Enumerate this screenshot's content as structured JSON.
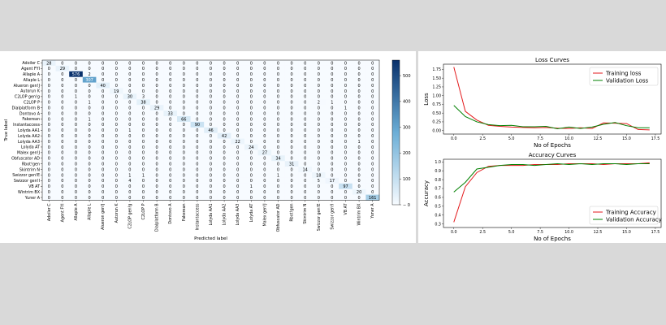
{
  "colors": {
    "page_bg": "#d9d9d9",
    "panel_bg": "#ffffff",
    "cmap_low": "#f7fbff",
    "cmap_mid": "#6baed6",
    "cmap_high": "#08306b",
    "train": "#e31a1c",
    "val": "#008000"
  },
  "chart_data": [
    {
      "type": "heatmap",
      "title": "",
      "xlabel": "Predicted label",
      "ylabel": "True label",
      "labels": [
        "Adoiler C",
        "Agent FYI",
        "Allaple A",
        "Allaple L",
        "Alueron gen!J",
        "Autorun K",
        "C2LOP gen!g",
        "C2LOP P",
        "Dialplatform B",
        "Dontovo A",
        "Fakerean",
        "Instantaccess",
        "Lolyda AA1",
        "Lolyda AA2",
        "Lolyda AA3",
        "Lolyda AT",
        "Malex gen!J",
        "Obfuscator AD",
        "Rbot!gen",
        "Skintrim N",
        "Swizzor gen!E",
        "Swizzor gen!I",
        "VB AT",
        "Wintrim BX",
        "Yuner A"
      ],
      "colorbar": {
        "min": 0,
        "max": 560,
        "ticks": [
          0,
          100,
          200,
          300,
          400,
          500
        ]
      },
      "matrix": [
        [
          28,
          0,
          0,
          0,
          0,
          0,
          0,
          0,
          0,
          0,
          0,
          0,
          0,
          0,
          0,
          0,
          0,
          0,
          0,
          0,
          0,
          0,
          0,
          0,
          0
        ],
        [
          0,
          29,
          0,
          0,
          0,
          0,
          0,
          0,
          0,
          0,
          0,
          0,
          0,
          0,
          0,
          0,
          0,
          0,
          0,
          0,
          0,
          0,
          0,
          0,
          0
        ],
        [
          0,
          0,
          576,
          2,
          0,
          0,
          0,
          0,
          0,
          0,
          0,
          0,
          0,
          0,
          0,
          0,
          0,
          0,
          0,
          0,
          0,
          0,
          0,
          0,
          0
        ],
        [
          0,
          0,
          0,
          307,
          0,
          0,
          0,
          0,
          0,
          0,
          0,
          0,
          0,
          0,
          0,
          0,
          0,
          0,
          0,
          0,
          0,
          0,
          0,
          0,
          0
        ],
        [
          0,
          0,
          0,
          0,
          40,
          0,
          0,
          0,
          0,
          0,
          0,
          0,
          0,
          0,
          0,
          0,
          0,
          0,
          0,
          0,
          0,
          0,
          0,
          0,
          0
        ],
        [
          0,
          0,
          0,
          0,
          0,
          19,
          0,
          0,
          0,
          0,
          0,
          0,
          0,
          0,
          0,
          0,
          0,
          0,
          0,
          0,
          0,
          0,
          0,
          0,
          0
        ],
        [
          0,
          0,
          1,
          0,
          0,
          0,
          30,
          3,
          0,
          0,
          0,
          0,
          0,
          0,
          0,
          0,
          0,
          0,
          0,
          0,
          0,
          0,
          0,
          0,
          0
        ],
        [
          0,
          0,
          0,
          1,
          0,
          0,
          0,
          38,
          0,
          0,
          0,
          0,
          0,
          0,
          0,
          0,
          0,
          0,
          0,
          0,
          2,
          1,
          0,
          0,
          0
        ],
        [
          0,
          0,
          0,
          0,
          0,
          0,
          0,
          0,
          29,
          0,
          0,
          0,
          0,
          0,
          0,
          0,
          0,
          0,
          0,
          0,
          0,
          0,
          1,
          0,
          0
        ],
        [
          0,
          0,
          0,
          0,
          0,
          0,
          0,
          0,
          0,
          33,
          0,
          0,
          0,
          0,
          0,
          0,
          0,
          0,
          0,
          0,
          0,
          0,
          0,
          0,
          0
        ],
        [
          0,
          0,
          0,
          1,
          0,
          0,
          0,
          0,
          0,
          0,
          66,
          0,
          0,
          0,
          0,
          0,
          0,
          0,
          0,
          0,
          0,
          0,
          0,
          0,
          0
        ],
        [
          0,
          0,
          0,
          0,
          0,
          0,
          0,
          0,
          0,
          0,
          0,
          90,
          0,
          0,
          0,
          0,
          0,
          0,
          0,
          0,
          0,
          0,
          0,
          0,
          0
        ],
        [
          0,
          0,
          0,
          0,
          0,
          0,
          1,
          0,
          0,
          0,
          0,
          0,
          46,
          0,
          0,
          0,
          0,
          0,
          0,
          0,
          0,
          0,
          0,
          0,
          0
        ],
        [
          0,
          0,
          0,
          0,
          0,
          0,
          0,
          0,
          0,
          0,
          0,
          0,
          0,
          42,
          0,
          0,
          0,
          0,
          0,
          0,
          0,
          0,
          0,
          0,
          0
        ],
        [
          0,
          0,
          0,
          0,
          0,
          0,
          0,
          0,
          0,
          0,
          0,
          0,
          0,
          0,
          22,
          0,
          0,
          0,
          0,
          0,
          0,
          0,
          0,
          1,
          0
        ],
        [
          0,
          0,
          0,
          0,
          0,
          0,
          0,
          0,
          0,
          0,
          0,
          0,
          0,
          0,
          0,
          24,
          0,
          0,
          0,
          0,
          0,
          0,
          0,
          0,
          0
        ],
        [
          0,
          0,
          0,
          0,
          0,
          0,
          0,
          0,
          0,
          0,
          0,
          0,
          0,
          0,
          0,
          0,
          27,
          0,
          0,
          0,
          0,
          0,
          0,
          0,
          0
        ],
        [
          0,
          0,
          0,
          0,
          0,
          0,
          0,
          0,
          0,
          0,
          0,
          0,
          0,
          0,
          0,
          0,
          0,
          34,
          0,
          0,
          0,
          0,
          0,
          0,
          0
        ],
        [
          0,
          0,
          0,
          0,
          0,
          0,
          0,
          0,
          0,
          0,
          0,
          0,
          0,
          0,
          0,
          0,
          0,
          0,
          31,
          0,
          0,
          0,
          0,
          0,
          0
        ],
        [
          0,
          0,
          0,
          0,
          0,
          0,
          0,
          0,
          0,
          0,
          0,
          0,
          0,
          0,
          0,
          0,
          0,
          0,
          0,
          14,
          0,
          0,
          0,
          0,
          0
        ],
        [
          0,
          0,
          0,
          0,
          0,
          0,
          1,
          1,
          0,
          0,
          0,
          0,
          0,
          0,
          0,
          0,
          0,
          1,
          0,
          0,
          18,
          0,
          0,
          0,
          0
        ],
        [
          0,
          0,
          0,
          0,
          0,
          0,
          4,
          0,
          0,
          0,
          0,
          0,
          0,
          0,
          0,
          0,
          0,
          0,
          0,
          0,
          5,
          17,
          0,
          0,
          0
        ],
        [
          0,
          0,
          0,
          0,
          0,
          0,
          0,
          0,
          0,
          0,
          0,
          0,
          0,
          0,
          0,
          1,
          0,
          0,
          0,
          0,
          0,
          0,
          97,
          0,
          0
        ],
        [
          0,
          0,
          0,
          0,
          0,
          0,
          0,
          0,
          0,
          0,
          0,
          0,
          0,
          0,
          0,
          0,
          0,
          0,
          0,
          0,
          0,
          0,
          0,
          20,
          0
        ],
        [
          0,
          0,
          0,
          0,
          0,
          0,
          0,
          0,
          0,
          0,
          0,
          0,
          0,
          0,
          0,
          0,
          0,
          0,
          0,
          0,
          0,
          0,
          0,
          0,
          161
        ]
      ]
    },
    {
      "type": "line",
      "title": "Loss Curves",
      "xlabel": "No of Epochs",
      "ylabel": "Loss",
      "xlim": [
        -0.9,
        18
      ],
      "ylim": [
        -0.1,
        1.9
      ],
      "xticks": [
        0.0,
        2.5,
        5.0,
        7.5,
        10.0,
        12.5,
        15.0,
        17.5
      ],
      "yticks": [
        0.0,
        0.25,
        0.5,
        0.75,
        1.0,
        1.25,
        1.5,
        1.75
      ],
      "grid": false,
      "legend": "top-right",
      "x": [
        0,
        1,
        2,
        3,
        4,
        5,
        6,
        7,
        8,
        9,
        10,
        11,
        12,
        13,
        14,
        15,
        16,
        17
      ],
      "series": [
        {
          "name": "Training loss",
          "color_key": "train",
          "values": [
            1.82,
            0.55,
            0.3,
            0.15,
            0.12,
            0.1,
            0.09,
            0.08,
            0.09,
            0.07,
            0.06,
            0.08,
            0.06,
            0.22,
            0.21,
            0.2,
            0.03,
            0.02
          ]
        },
        {
          "name": "Validation Loss",
          "color_key": "val",
          "values": [
            0.72,
            0.4,
            0.25,
            0.17,
            0.14,
            0.15,
            0.11,
            0.11,
            0.12,
            0.05,
            0.1,
            0.06,
            0.1,
            0.18,
            0.23,
            0.14,
            0.08,
            0.08
          ]
        }
      ]
    },
    {
      "type": "line",
      "title": "Accuracy Curves",
      "xlabel": "No of Epochs",
      "ylabel": "Accuracy",
      "xlim": [
        -0.9,
        18
      ],
      "ylim": [
        0.26,
        1.03
      ],
      "xticks": [
        0.0,
        2.5,
        5.0,
        7.5,
        10.0,
        12.5,
        15.0,
        17.5
      ],
      "yticks": [
        0.3,
        0.4,
        0.5,
        0.6,
        0.7,
        0.8,
        0.9,
        1.0
      ],
      "grid": false,
      "legend": "bottom-right",
      "x": [
        0,
        1,
        2,
        3,
        4,
        5,
        6,
        7,
        8,
        9,
        10,
        11,
        12,
        13,
        14,
        15,
        16,
        17
      ],
      "series": [
        {
          "name": "Training Accuracy",
          "color_key": "train",
          "values": [
            0.32,
            0.72,
            0.88,
            0.95,
            0.96,
            0.96,
            0.96,
            0.97,
            0.97,
            0.97,
            0.98,
            0.98,
            0.98,
            0.97,
            0.98,
            0.98,
            0.98,
            0.99
          ]
        },
        {
          "name": "Validation Accuracy",
          "color_key": "val",
          "values": [
            0.66,
            0.77,
            0.92,
            0.94,
            0.96,
            0.97,
            0.97,
            0.96,
            0.97,
            0.98,
            0.97,
            0.98,
            0.97,
            0.98,
            0.98,
            0.97,
            0.98,
            0.98
          ]
        }
      ]
    }
  ]
}
